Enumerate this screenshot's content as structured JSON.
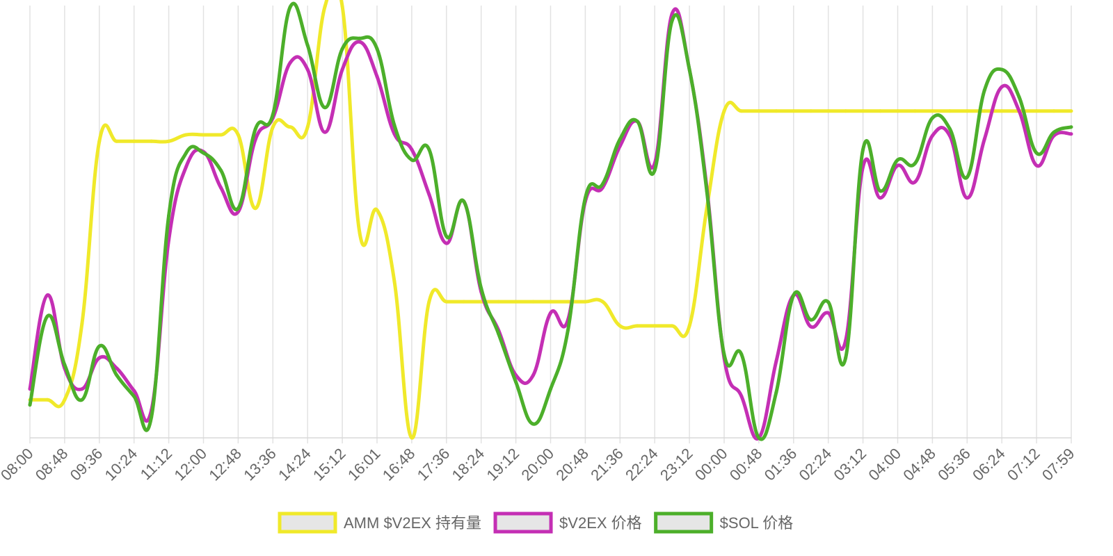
{
  "chart_data": {
    "type": "line",
    "categories": [
      "08:00",
      null,
      "08:48",
      null,
      "09:36",
      null,
      "10:24",
      null,
      "11:12",
      null,
      "12:00",
      null,
      "12:48",
      null,
      "13:36",
      null,
      "14:24",
      null,
      "15:12",
      null,
      "16:01",
      null,
      "16:48",
      null,
      "17:36",
      null,
      "18:24",
      null,
      "19:12",
      null,
      "20:00",
      null,
      "20:48",
      null,
      "21:36",
      null,
      "22:24",
      null,
      "23:12",
      null,
      "00:00",
      null,
      "00:48",
      null,
      "01:36",
      null,
      "02:24",
      null,
      "03:12",
      null,
      "04:00",
      null,
      "04:48",
      null,
      "05:36",
      null,
      "06:24",
      null,
      "07:12",
      null,
      "07:59"
    ],
    "ylim": [
      0,
      100
    ],
    "grid": true,
    "legend": "bottom",
    "series": [
      {
        "name": "AMM $V2EX 持有量",
        "color": "#f0e92a",
        "values": [
          8.8,
          8.8,
          8.8,
          26.4,
          68.6,
          68.6,
          68.6,
          68.6,
          68.6,
          70.1,
          70.1,
          70.1,
          70.1,
          53.1,
          71.9,
          71.9,
          71.9,
          99.8,
          99.8,
          47.4,
          52.7,
          36.2,
          0,
          31.5,
          31.5,
          31.5,
          31.5,
          31.5,
          31.5,
          31.5,
          31.5,
          31.5,
          31.5,
          31.5,
          25.9,
          25.9,
          25.9,
          25.9,
          25.9,
          53.1,
          75.6,
          75.6,
          75.6,
          75.6,
          75.6,
          75.6,
          75.6,
          75.6,
          75.6,
          75.6,
          75.6,
          75.6,
          75.6,
          75.6,
          75.6,
          75.6,
          75.6,
          75.6,
          75.6,
          75.6,
          75.6
        ]
      },
      {
        "name": "$V2EX 价格",
        "color": "#c42fb4",
        "values": [
          11.3,
          33.0,
          16.1,
          11.3,
          18.5,
          16.1,
          10.9,
          6.4,
          45.8,
          62.7,
          66.2,
          57.9,
          52.3,
          69.1,
          74.0,
          86.8,
          85.2,
          70.7,
          85.2,
          91.6,
          83.6,
          70.3,
          66.7,
          56.3,
          45.0,
          54.7,
          33.8,
          24.9,
          14.5,
          14.5,
          28.9,
          27.3,
          54.7,
          57.9,
          67.5,
          73.2,
          63.5,
          98.1,
          85.2,
          57.9,
          18.5,
          9.6,
          0,
          17.7,
          33.0,
          25.7,
          28.9,
          22.5,
          62.7,
          55.5,
          63.0,
          59.2,
          69.9,
          69.9,
          55.5,
          69.1,
          81.2,
          75.6,
          63.0,
          69.9,
          70.3
        ]
      },
      {
        "name": "$SOL 价格",
        "color": "#4caf2a",
        "values": [
          7.6,
          28.1,
          16.9,
          8.8,
          21.2,
          14.5,
          9.6,
          4.8,
          51.4,
          65.9,
          65.9,
          61.9,
          53.1,
          71.5,
          74.8,
          99.7,
          90.8,
          76.4,
          90.0,
          92.4,
          90.0,
          72.3,
          64.3,
          66.7,
          46.6,
          54.7,
          34.6,
          24.1,
          12.9,
          3.2,
          11.3,
          24.9,
          55.5,
          58.7,
          69.1,
          73.2,
          61.9,
          96.5,
          85.2,
          57.1,
          19.3,
          19.3,
          0,
          10.5,
          33.0,
          27.3,
          31.4,
          18.5,
          66.7,
          57.1,
          64.3,
          63.5,
          74.0,
          71.5,
          60.3,
          80.4,
          85.2,
          78.8,
          65.9,
          70.7,
          71.9
        ]
      }
    ]
  }
}
